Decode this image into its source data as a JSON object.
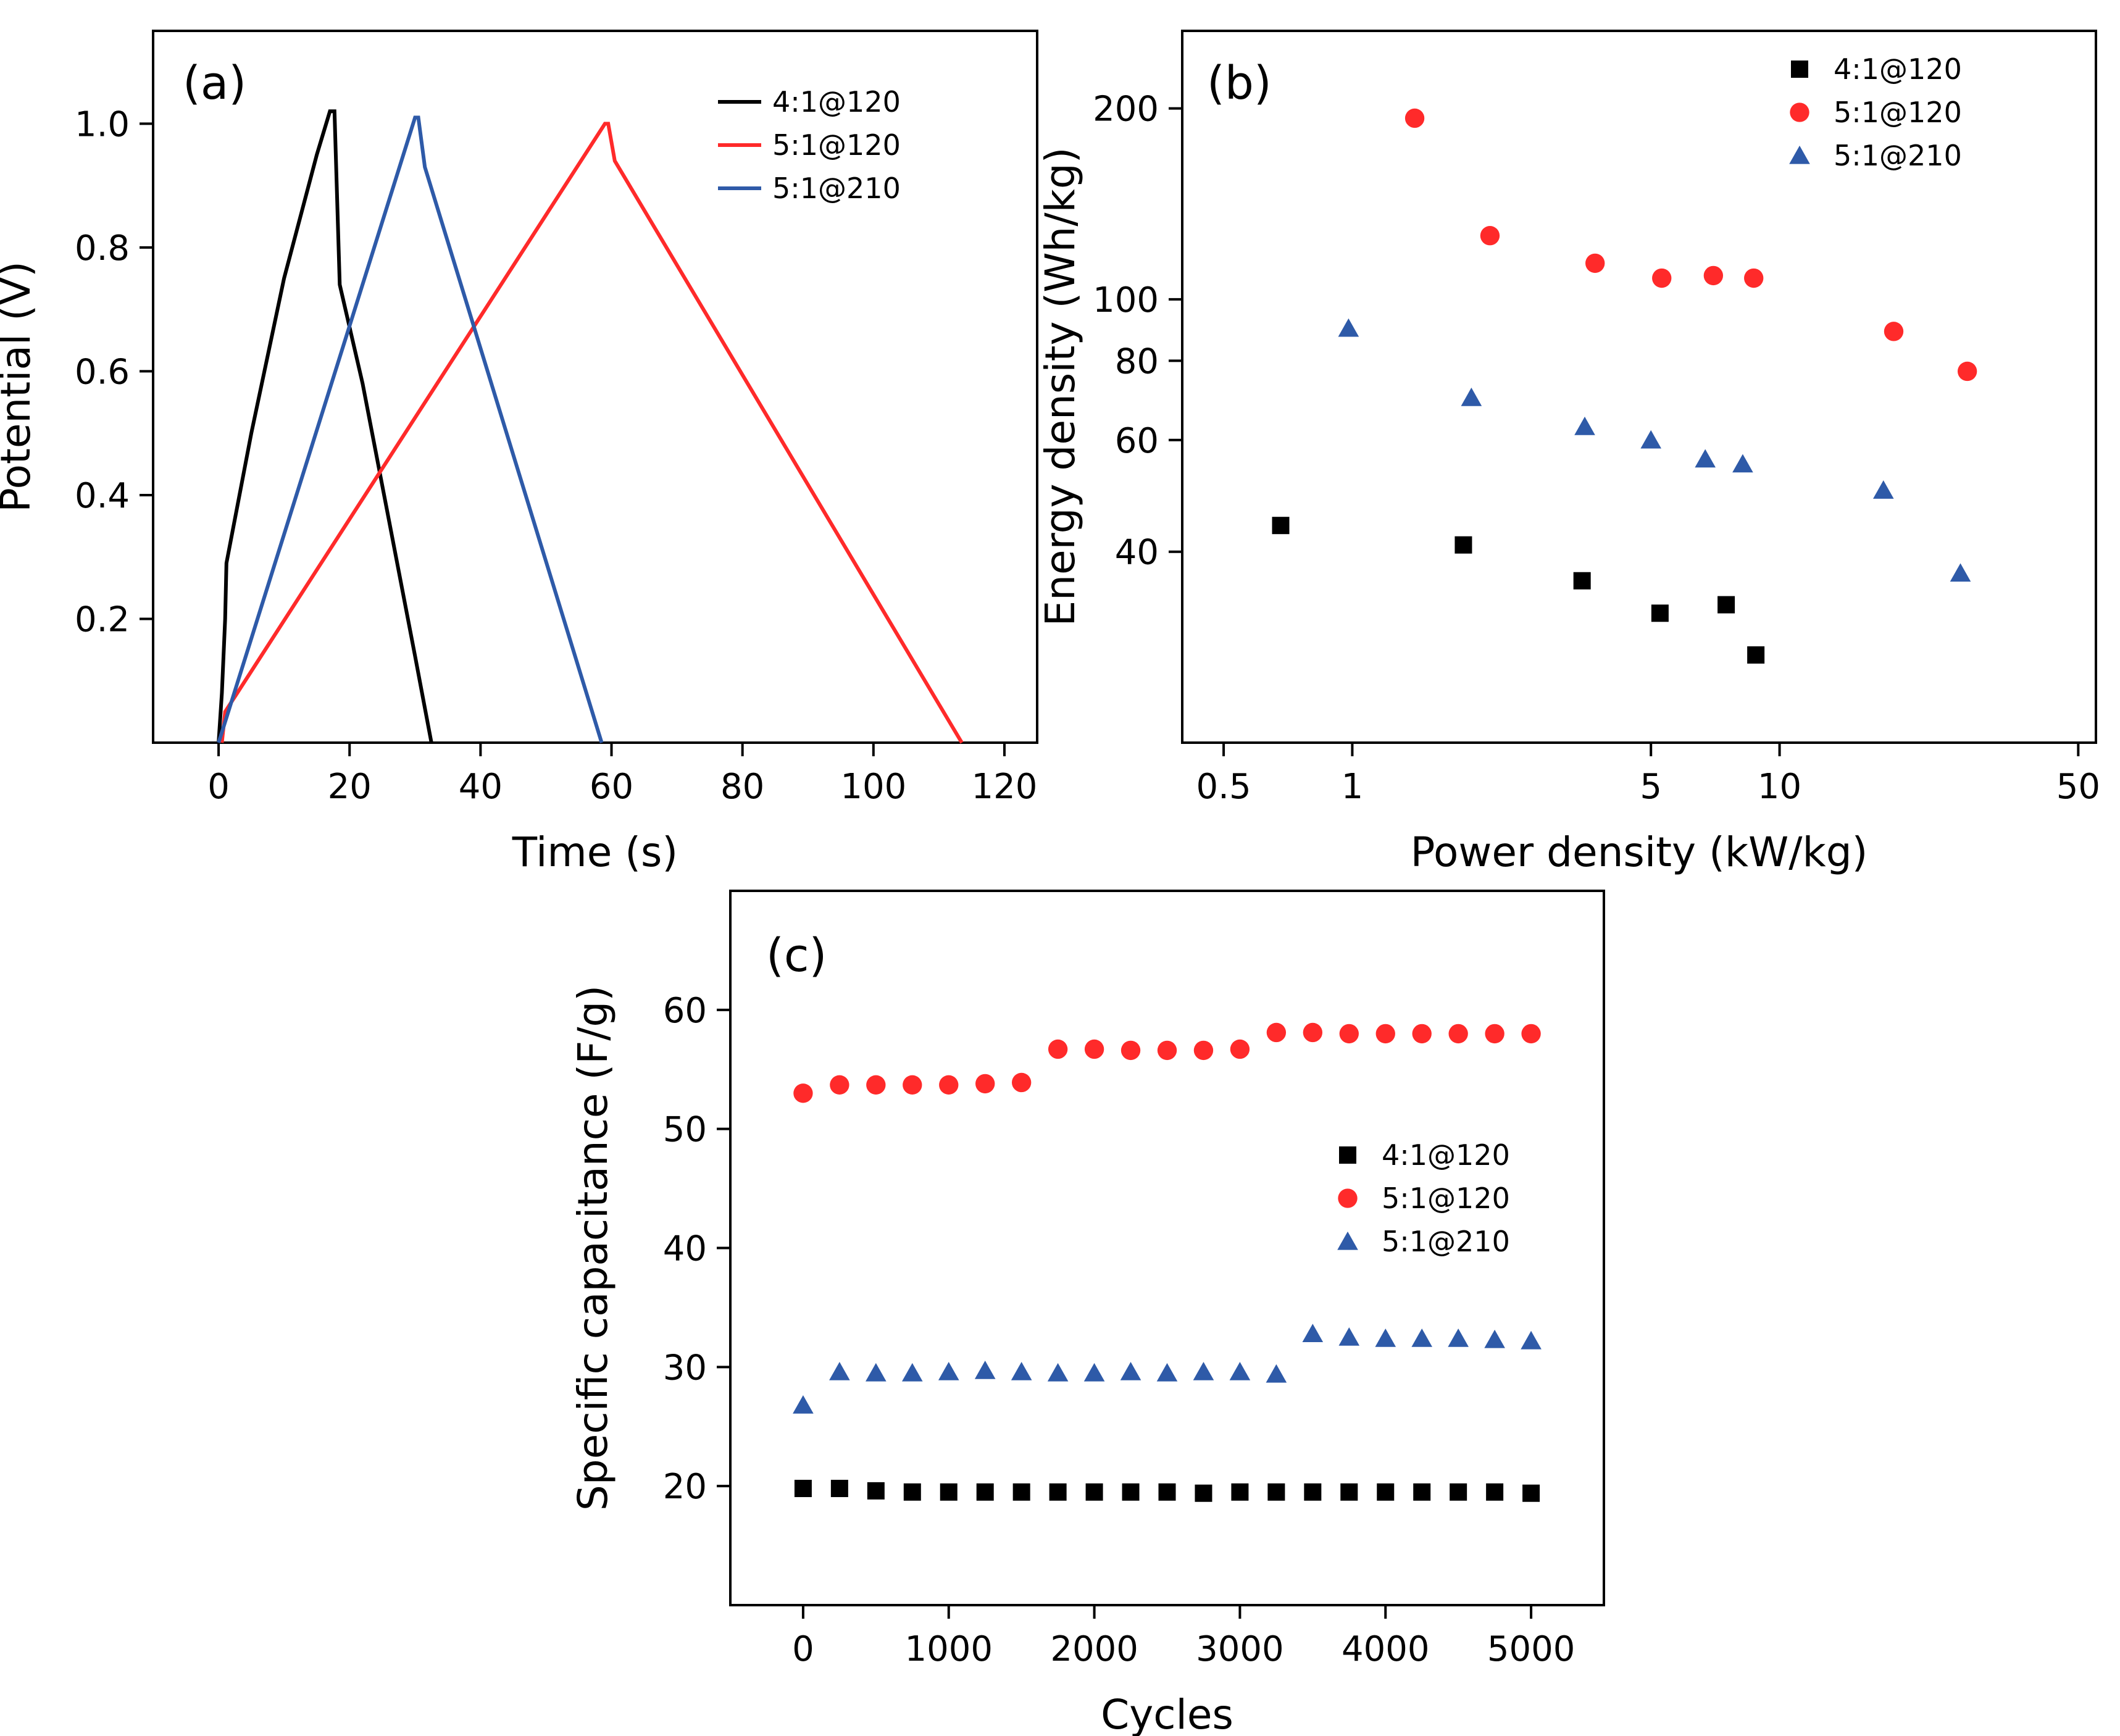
{
  "colors": {
    "black_series": "#000000",
    "red_series": "#ff2a2a",
    "blue_series": "#2e5aa8"
  },
  "chart_data": [
    {
      "panel": "(a)",
      "type": "line",
      "xlabel": "Time (s)",
      "ylabel": "Potential (V)",
      "xlim": [
        -10,
        125
      ],
      "ylim": [
        0,
        1.15
      ],
      "xticks": [
        0,
        20,
        40,
        60,
        80,
        100,
        120
      ],
      "yticks": [
        0.2,
        0.4,
        0.6,
        0.8,
        1.0
      ],
      "xtick_labels": [
        "0",
        "20",
        "40",
        "60",
        "80",
        "100",
        "120"
      ],
      "ytick_labels": [
        "0.2",
        "0.4",
        "0.6",
        "0.8",
        "1.0"
      ],
      "legend_position": "top-right",
      "series": [
        {
          "name": "4:1@120",
          "color": "#000000",
          "x": [
            0,
            0.5,
            1,
            1.2,
            5,
            10,
            15,
            17,
            17.7,
            18.5,
            22,
            26,
            30,
            32.5
          ],
          "y": [
            0,
            0.08,
            0.2,
            0.29,
            0.5,
            0.75,
            0.95,
            1.02,
            1.02,
            0.74,
            0.58,
            0.36,
            0.14,
            0
          ]
        },
        {
          "name": "5:1@120",
          "color": "#ff2a2a",
          "x": [
            0.5,
            1,
            59,
            59.5,
            60.5,
            113.5
          ],
          "y": [
            0,
            0.05,
            1.0,
            1.0,
            0.94,
            0
          ]
        },
        {
          "name": "5:1@210",
          "color": "#2e5aa8",
          "x": [
            0,
            30,
            30.5,
            31.5,
            58.5
          ],
          "y": [
            0,
            1.01,
            1.01,
            0.93,
            0
          ]
        }
      ]
    },
    {
      "panel": "(b)",
      "type": "scatter",
      "xscale": "log",
      "yscale": "log",
      "xlabel": "Power density (kW/kg)",
      "ylabel": "Energy density (Wh/kg)",
      "xlim": [
        0.4,
        55
      ],
      "ylim": [
        20,
        265
      ],
      "xticks": [
        0.5,
        1,
        5,
        10,
        50
      ],
      "yticks": [
        40,
        60,
        80,
        100,
        200
      ],
      "xtick_labels": [
        "0.5",
        "1",
        "5",
        "10",
        "50"
      ],
      "ytick_labels": [
        "40",
        "60",
        "80",
        "100",
        "200"
      ],
      "legend_position": "top-right",
      "series": [
        {
          "name": "4:1@120",
          "marker": "square",
          "color": "#000000",
          "x": [
            0.68,
            1.82,
            3.45,
            5.25,
            7.5,
            8.8
          ],
          "y": [
            44,
            41,
            36,
            32,
            33,
            27.5
          ]
        },
        {
          "name": "5:1@120",
          "marker": "circle",
          "color": "#ff2a2a",
          "x": [
            1.4,
            2.1,
            3.7,
            5.3,
            7.0,
            8.7,
            18.5,
            27.5
          ],
          "y": [
            193,
            126,
            114,
            108,
            109,
            108,
            89,
            77
          ]
        },
        {
          "name": "5:1@210",
          "marker": "triangle",
          "color": "#2e5aa8",
          "x": [
            0.98,
            1.9,
            3.5,
            5.0,
            6.7,
            8.2,
            17.5,
            26.5
          ],
          "y": [
            90,
            70,
            63,
            60,
            56,
            55,
            50,
            37
          ]
        }
      ]
    },
    {
      "panel": "(c)",
      "type": "scatter",
      "xlabel": "Cycles",
      "ylabel": "Specific capacitance (F/g)",
      "xlim": [
        -500,
        5500
      ],
      "ylim": [
        10,
        70
      ],
      "xticks": [
        0,
        1000,
        2000,
        3000,
        4000,
        5000
      ],
      "yticks": [
        20,
        30,
        40,
        50,
        60
      ],
      "xtick_labels": [
        "0",
        "1000",
        "2000",
        "3000",
        "4000",
        "5000"
      ],
      "ytick_labels": [
        "20",
        "30",
        "40",
        "50",
        "60"
      ],
      "legend_position": "center-right",
      "series": [
        {
          "name": "4:1@120",
          "marker": "square",
          "color": "#000000",
          "x": [
            0,
            250,
            500,
            750,
            1000,
            1250,
            1500,
            1750,
            2000,
            2250,
            2500,
            2750,
            3000,
            3250,
            3500,
            3750,
            4000,
            4250,
            4500,
            4750,
            5000
          ],
          "y": [
            19.8,
            19.8,
            19.6,
            19.5,
            19.5,
            19.5,
            19.5,
            19.5,
            19.5,
            19.5,
            19.5,
            19.4,
            19.5,
            19.5,
            19.5,
            19.5,
            19.5,
            19.5,
            19.5,
            19.5,
            19.4
          ]
        },
        {
          "name": "5:1@120",
          "marker": "circle",
          "color": "#ff2a2a",
          "x": [
            0,
            250,
            500,
            750,
            1000,
            1250,
            1500,
            1750,
            2000,
            2250,
            2500,
            2750,
            3000,
            3250,
            3500,
            3750,
            4000,
            4250,
            4500,
            4750,
            5000
          ],
          "y": [
            53.0,
            53.7,
            53.7,
            53.7,
            53.7,
            53.8,
            53.9,
            56.7,
            56.7,
            56.6,
            56.6,
            56.6,
            56.7,
            58.1,
            58.1,
            58.0,
            58.0,
            58.0,
            58.0,
            58.0,
            58.0
          ]
        },
        {
          "name": "5:1@210",
          "marker": "triangle",
          "color": "#2e5aa8",
          "x": [
            0,
            250,
            500,
            750,
            1000,
            1250,
            1500,
            1750,
            2000,
            2250,
            2500,
            2750,
            3000,
            3250,
            3500,
            3750,
            4000,
            4250,
            4500,
            4750,
            5000
          ],
          "y": [
            26.8,
            29.6,
            29.5,
            29.5,
            29.6,
            29.7,
            29.6,
            29.5,
            29.5,
            29.6,
            29.5,
            29.6,
            29.6,
            29.4,
            32.8,
            32.5,
            32.4,
            32.4,
            32.4,
            32.3,
            32.2
          ]
        }
      ]
    }
  ]
}
